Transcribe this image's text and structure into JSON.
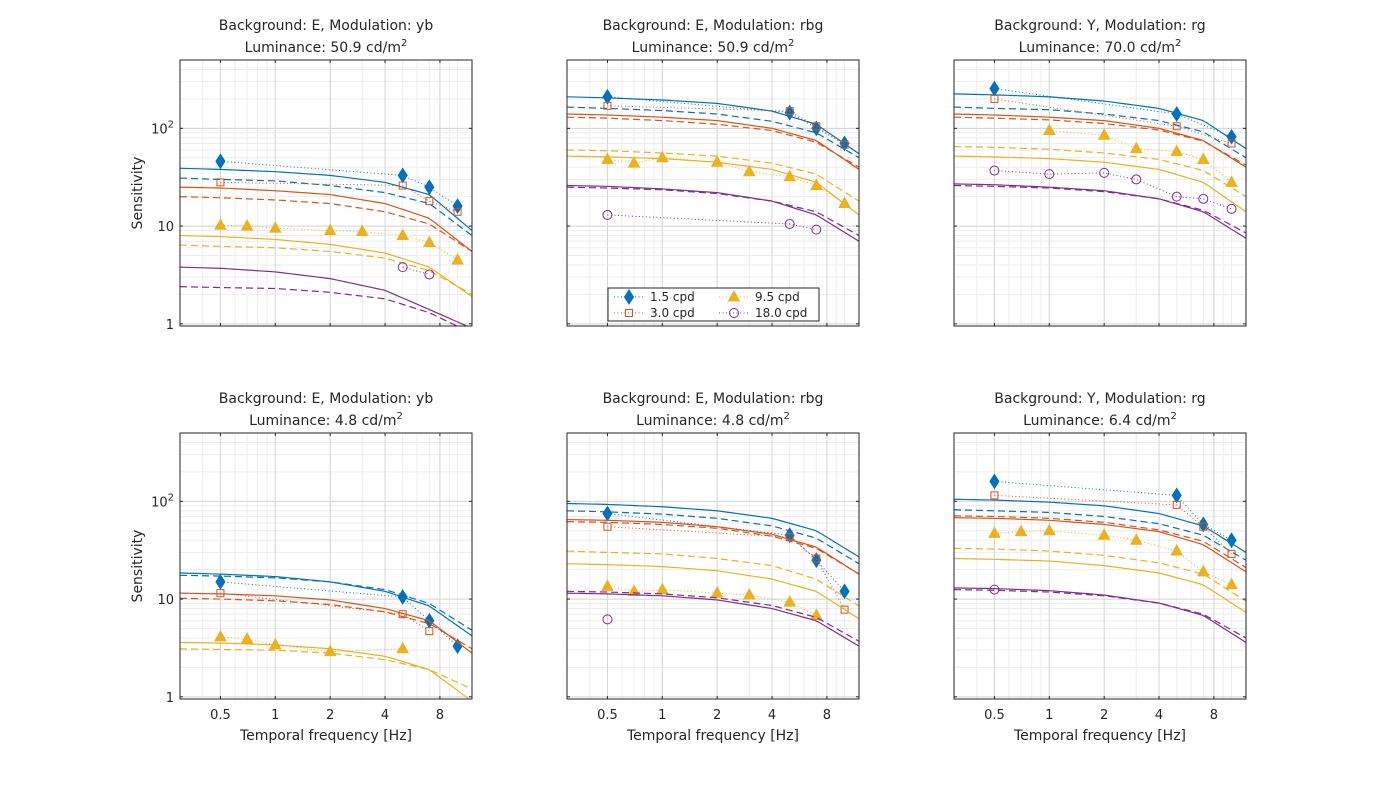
{
  "figure": {
    "xlabel": "Temporal frequency [Hz]",
    "ylabel": "Sensitivity",
    "x_ticks": [
      "0.5",
      "1",
      "2",
      "4",
      "8"
    ],
    "x_tick_values": [
      0.5,
      1,
      2,
      4,
      8
    ],
    "y_ticks": [
      {
        "base": "1",
        "exp": "",
        "value": 1
      },
      {
        "base": "10",
        "exp": "",
        "value": 10
      },
      {
        "base": "10",
        "exp": "2",
        "value": 100
      }
    ],
    "colors": {
      "1.5": "#0072BD",
      "3.0": "#D95319",
      "9.5": "#EDB120",
      "18.0": "#7E2F8E"
    },
    "markers": {
      "1.5": "diamond",
      "3.0": "square",
      "9.5": "triangle",
      "18.0": "circle"
    }
  },
  "legend": {
    "items": [
      {
        "key": "1.5",
        "label": "1.5 cpd"
      },
      {
        "key": "9.5",
        "label": "9.5 cpd"
      },
      {
        "key": "3.0",
        "label": "3.0 cpd"
      },
      {
        "key": "18.0",
        "label": "18.0 cpd"
      }
    ]
  },
  "chart_data": [
    {
      "type": "line",
      "title": "Background: E, Modulation: yb",
      "subtitle": "Luminance: 50.9 cd/m",
      "subtitle_sup": "2",
      "xscale": "log",
      "yscale": "log",
      "xlim": [
        0.3,
        12
      ],
      "ylim": [
        0.95,
        500
      ],
      "grid": true,
      "show_xticklabels": false,
      "show_yticklabels": true,
      "legend": "",
      "series": [
        {
          "key": "1.5",
          "measured": {
            "x": [
              0.5,
              5,
              7,
              10
            ],
            "y": [
              46,
              33,
              25,
              16
            ]
          },
          "model_solid": [
            39,
            38,
            36,
            33,
            28,
            21,
            9
          ],
          "model_dashed": [
            31,
            30,
            29,
            26,
            22,
            17,
            8
          ]
        },
        {
          "key": "3.0",
          "measured": {
            "x": [
              0.5,
              5,
              7,
              10
            ],
            "y": [
              28,
              26,
              18,
              14
            ]
          },
          "model_solid": [
            25,
            24.5,
            23,
            21,
            17,
            12,
            5.5
          ],
          "model_dashed": [
            20,
            19.5,
            18.5,
            17,
            14,
            10.5,
            5.5
          ]
        },
        {
          "key": "9.5",
          "measured": {
            "x": [
              0.5,
              0.7,
              1,
              2,
              3,
              5,
              7,
              10
            ],
            "y": [
              10.2,
              10,
              9.5,
              9,
              8.8,
              8,
              6.8,
              4.5
            ]
          },
          "model_solid": [
            8,
            7.8,
            7.3,
            6.5,
            5.3,
            3.8,
            1.9
          ],
          "model_dashed": [
            6.4,
            6.2,
            6,
            5.5,
            4.7,
            3.5,
            2
          ]
        },
        {
          "key": "18.0",
          "measured": {
            "x": [
              5,
              7
            ],
            "y": [
              3.8,
              3.2
            ]
          },
          "model_solid": [
            3.8,
            3.7,
            3.4,
            2.9,
            2.2,
            1.4,
            0.9
          ],
          "model_dashed": [
            2.4,
            2.35,
            2.3,
            2.1,
            1.8,
            1.3,
            0.8
          ]
        }
      ]
    },
    {
      "type": "line",
      "title": "Background: E, Modulation: rbg",
      "subtitle": "Luminance: 50.9 cd/m",
      "subtitle_sup": "2",
      "xscale": "log",
      "yscale": "log",
      "xlim": [
        0.3,
        12
      ],
      "ylim": [
        0.95,
        500
      ],
      "grid": true,
      "show_xticklabels": false,
      "show_yticklabels": false,
      "legend": "bottom-center",
      "series": [
        {
          "key": "1.5",
          "measured": {
            "x": [
              0.5,
              5,
              7,
              10
            ],
            "y": [
              210,
              145,
              100,
              70
            ]
          },
          "model_solid": [
            210,
            205,
            195,
            180,
            150,
            110,
            55
          ],
          "model_dashed": [
            165,
            160,
            152,
            140,
            118,
            90,
            50
          ]
        },
        {
          "key": "3.0",
          "measured": {
            "x": [
              0.5,
              5,
              7,
              10
            ],
            "y": [
              170,
              150,
              105,
              68
            ]
          },
          "model_solid": [
            140,
            137,
            130,
            120,
            100,
            75,
            38
          ],
          "model_dashed": [
            130,
            127,
            120,
            110,
            95,
            72,
            40
          ]
        },
        {
          "key": "9.5",
          "measured": {
            "x": [
              0.5,
              0.7,
              1,
              2,
              3,
              5,
              7,
              10
            ],
            "y": [
              48,
              44,
              50,
              45,
              36,
              32,
              26,
              17
            ]
          },
          "model_solid": [
            52,
            51,
            49,
            45,
            38,
            28,
            13
          ],
          "model_dashed": [
            60,
            59,
            56,
            52,
            44,
            34,
            18
          ]
        },
        {
          "key": "18.0",
          "measured": {
            "x": [
              0.5,
              5,
              7
            ],
            "y": [
              13,
              10.5,
              9.2
            ]
          },
          "model_solid": [
            26,
            25.5,
            24,
            22,
            18,
            13,
            7
          ],
          "model_dashed": [
            25,
            24.5,
            23.5,
            21.5,
            18,
            14,
            8
          ]
        }
      ]
    },
    {
      "type": "line",
      "title": "Background: Y, Modulation: rg",
      "subtitle": "Luminance: 70.0 cd/m",
      "subtitle_sup": "2",
      "xscale": "log",
      "yscale": "log",
      "xlim": [
        0.3,
        12
      ],
      "ylim": [
        0.95,
        500
      ],
      "grid": true,
      "show_xticklabels": false,
      "show_yticklabels": false,
      "legend": "",
      "series": [
        {
          "key": "1.5",
          "measured": {
            "x": [
              0.5,
              5,
              10
            ],
            "y": [
              255,
              140,
              82
            ]
          },
          "model_solid": [
            225,
            220,
            210,
            190,
            160,
            120,
            62
          ],
          "model_dashed": [
            165,
            160,
            155,
            140,
            120,
            92,
            50
          ]
        },
        {
          "key": "3.0",
          "measured": {
            "x": [
              0.5,
              5,
              10
            ],
            "y": [
              200,
              105,
              70
            ]
          },
          "model_solid": [
            140,
            137,
            130,
            120,
            100,
            75,
            40
          ],
          "model_dashed": [
            130,
            127,
            122,
            112,
            96,
            74,
            42
          ]
        },
        {
          "key": "9.5",
          "measured": {
            "x": [
              1,
              2,
              3,
              5,
              7,
              10
            ],
            "y": [
              95,
              85,
              62,
              58,
              48,
              28
            ]
          },
          "model_solid": [
            52,
            51,
            49,
            45,
            38,
            28,
            14
          ],
          "model_dashed": [
            65,
            64,
            61,
            56,
            48,
            37,
            20
          ]
        },
        {
          "key": "18.0",
          "measured": {
            "x": [
              0.5,
              1,
              2,
              3,
              5,
              7,
              10
            ],
            "y": [
              37,
              34,
              35,
              30,
              20,
              19,
              15
            ]
          },
          "model_solid": [
            27,
            26.5,
            25,
            23,
            19,
            14,
            7.5
          ],
          "model_dashed": [
            26,
            25.5,
            24.5,
            22.5,
            19,
            14.5,
            8.5
          ]
        }
      ]
    },
    {
      "type": "line",
      "title": "Background: E, Modulation: yb",
      "subtitle": "Luminance: 4.8 cd/m",
      "subtitle_sup": "2",
      "xscale": "log",
      "yscale": "log",
      "xlim": [
        0.3,
        12
      ],
      "ylim": [
        0.95,
        500
      ],
      "grid": true,
      "show_xticklabels": true,
      "show_yticklabels": true,
      "legend": "",
      "series": [
        {
          "key": "1.5",
          "measured": {
            "x": [
              0.5,
              5,
              7,
              10
            ],
            "y": [
              15,
              10.5,
              6,
              3.3
            ]
          },
          "model_solid": [
            18.5,
            18,
            17,
            15,
            12,
            8.5,
            4.2
          ],
          "model_dashed": [
            17.5,
            17.2,
            16.5,
            15,
            12.5,
            9,
            4.8
          ]
        },
        {
          "key": "3.0",
          "measured": {
            "x": [
              0.5,
              5,
              7
            ],
            "y": [
              11.5,
              7,
              4.7
            ]
          },
          "model_solid": [
            11.5,
            11.3,
            10.8,
            9.8,
            8,
            6,
            2.8
          ],
          "model_dashed": [
            10.2,
            10,
            9.6,
            8.8,
            7.4,
            5.6,
            3.1
          ]
        },
        {
          "key": "9.5",
          "measured": {
            "x": [
              0.5,
              0.7,
              1,
              2,
              5
            ],
            "y": [
              4.1,
              3.9,
              3.4,
              2.9,
              3.1
            ]
          },
          "model_solid": [
            3.6,
            3.55,
            3.4,
            3.1,
            2.6,
            1.9,
            0.9
          ],
          "model_dashed": [
            3.1,
            3.05,
            3,
            2.8,
            2.4,
            1.9,
            1.2
          ]
        }
      ]
    },
    {
      "type": "line",
      "title": "Background: E, Modulation: rbg",
      "subtitle": "Luminance: 4.8 cd/m",
      "subtitle_sup": "2",
      "xscale": "log",
      "yscale": "log",
      "xlim": [
        0.3,
        12
      ],
      "ylim": [
        0.95,
        500
      ],
      "grid": true,
      "show_xticklabels": true,
      "show_yticklabels": false,
      "legend": "",
      "series": [
        {
          "key": "1.5",
          "measured": {
            "x": [
              0.5,
              5,
              7,
              10
            ],
            "y": [
              75,
              45,
              25,
              12
            ]
          },
          "model_solid": [
            95,
            93,
            88,
            80,
            67,
            50,
            27
          ],
          "model_dashed": [
            80,
            78,
            74,
            67,
            56,
            42,
            23
          ]
        },
        {
          "key": "3.0",
          "measured": {
            "x": [
              0.5,
              5,
              7,
              10
            ],
            "y": [
              55,
              43,
              26,
              7.8
            ]
          },
          "model_solid": [
            65,
            64,
            61,
            55,
            46,
            34,
            18
          ],
          "model_dashed": [
            62,
            61,
            58,
            53,
            44,
            33,
            18
          ]
        },
        {
          "key": "9.5",
          "measured": {
            "x": [
              0.5,
              0.7,
              1,
              2,
              3,
              5,
              7
            ],
            "y": [
              13.5,
              12,
              12.5,
              11.5,
              11,
              9.3,
              6.8
            ]
          },
          "model_solid": [
            23,
            22.5,
            21.5,
            19.5,
            16,
            12,
            6.3
          ],
          "model_dashed": [
            31,
            30,
            29,
            26,
            22,
            16,
            8.5
          ]
        },
        {
          "key": "18.0",
          "measured": {
            "x": [
              0.5
            ],
            "y": [
              6.2
            ]
          },
          "model_solid": [
            11.5,
            11.3,
            10.8,
            9.8,
            8,
            6,
            3.3
          ],
          "model_dashed": [
            12,
            11.8,
            11.3,
            10.3,
            8.6,
            6.5,
            3.7
          ]
        }
      ]
    },
    {
      "type": "line",
      "title": "Background: Y, Modulation: rg",
      "subtitle": "Luminance: 6.4 cd/m",
      "subtitle_sup": "2",
      "xscale": "log",
      "yscale": "log",
      "xlim": [
        0.3,
        12
      ],
      "ylim": [
        0.95,
        500
      ],
      "grid": true,
      "show_xticklabels": true,
      "show_yticklabels": false,
      "legend": "",
      "series": [
        {
          "key": "1.5",
          "measured": {
            "x": [
              0.5,
              5,
              7,
              10
            ],
            "y": [
              160,
              115,
              58,
              40
            ]
          },
          "model_solid": [
            105,
            103,
            98,
            90,
            75,
            56,
            30
          ],
          "model_dashed": [
            82,
            80,
            77,
            70,
            59,
            45,
            25
          ]
        },
        {
          "key": "3.0",
          "measured": {
            "x": [
              0.5,
              5,
              7,
              10
            ],
            "y": [
              115,
              92,
              55,
              29
            ]
          },
          "model_solid": [
            68,
            67,
            64,
            58,
            49,
            36,
            19
          ],
          "model_dashed": [
            71,
            70,
            67,
            61,
            51,
            39,
            21
          ]
        },
        {
          "key": "9.5",
          "measured": {
            "x": [
              0.5,
              0.7,
              1,
              2,
              3,
              5,
              7,
              10
            ],
            "y": [
              47,
              49,
              50,
              45,
              40,
              31,
              19,
              14
            ]
          },
          "model_solid": [
            26,
            25.5,
            24.5,
            22,
            18.5,
            14,
            7.3
          ],
          "model_dashed": [
            33,
            32.5,
            31,
            28,
            23.5,
            18,
            9.5
          ]
        },
        {
          "key": "18.0",
          "measured": {
            "x": [
              0.5
            ],
            "y": [
              12.5
            ]
          },
          "model_solid": [
            13,
            12.8,
            12.2,
            11,
            9.1,
            6.8,
            3.6
          ],
          "model_dashed": [
            12.5,
            12.3,
            11.8,
            10.8,
            9.1,
            7,
            4
          ]
        }
      ]
    }
  ]
}
